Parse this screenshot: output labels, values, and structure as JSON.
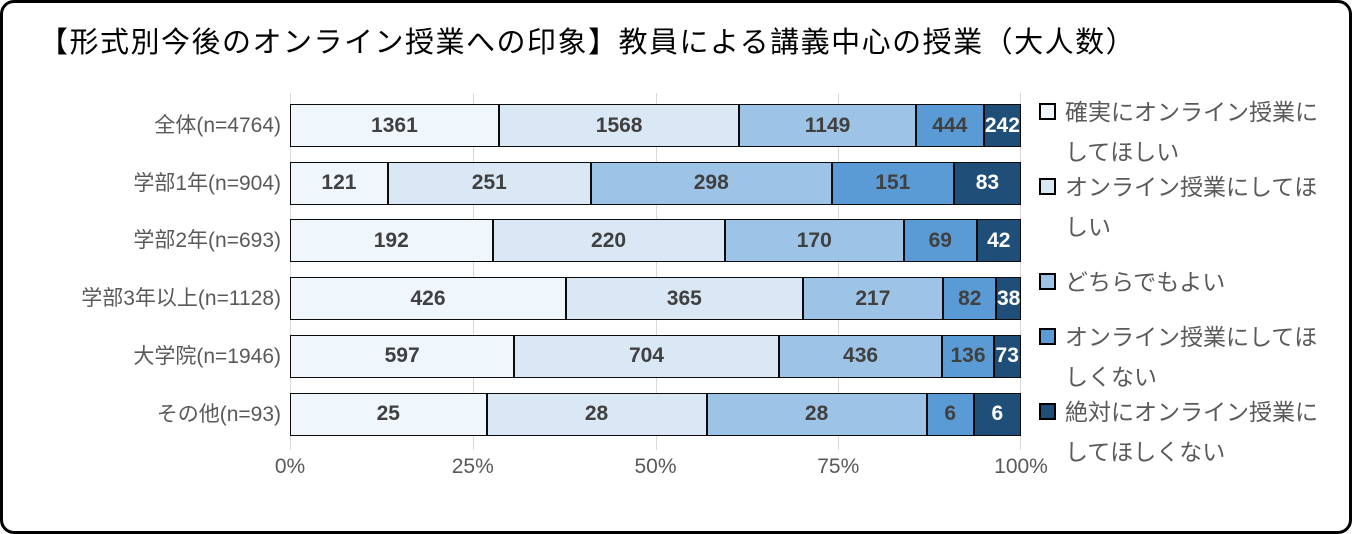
{
  "chart_data": {
    "type": "bar",
    "orientation": "horizontal_stacked_100pct",
    "title": "【形式別今後のオンライン授業への印象】教員による講義中心の授業（大人数）",
    "categories": [
      "全体(n=4764)",
      "学部1年(n=904)",
      "学部2年(n=693)",
      "学部3年以上(n=1128)",
      "大学院(n=1946)",
      "その他(n=93)"
    ],
    "series": [
      {
        "name": "確実にオンライン授業にしてほしい",
        "color": "#EFF6FC",
        "values": [
          1361,
          121,
          192,
          426,
          597,
          25
        ]
      },
      {
        "name": "オンライン授業にしてほしい",
        "color": "#DAE8F5",
        "values": [
          1568,
          251,
          220,
          365,
          704,
          28
        ]
      },
      {
        "name": "どちらでもよい",
        "color": "#9DC3E6",
        "values": [
          1149,
          298,
          170,
          217,
          436,
          28
        ]
      },
      {
        "name": "オンライン授業にしてほしくない",
        "color": "#5B9BD5",
        "values": [
          444,
          151,
          69,
          82,
          136,
          6
        ]
      },
      {
        "name": "絶対にオンライン授業にしてほしくない",
        "color": "#1F4E79",
        "values": [
          242,
          83,
          42,
          38,
          73,
          6
        ]
      }
    ],
    "x_ticks": [
      "0%",
      "25%",
      "50%",
      "75%",
      "100%"
    ],
    "xlim": [
      0,
      100
    ],
    "grid": true,
    "legend_position": "right",
    "grid_color": "#D9D9D9",
    "axis_text_color": "#595959",
    "value_label_color": "#404040",
    "value_label_color_on_dark": "#FFFFFF",
    "segment_border_color": "#0b0b0b"
  }
}
